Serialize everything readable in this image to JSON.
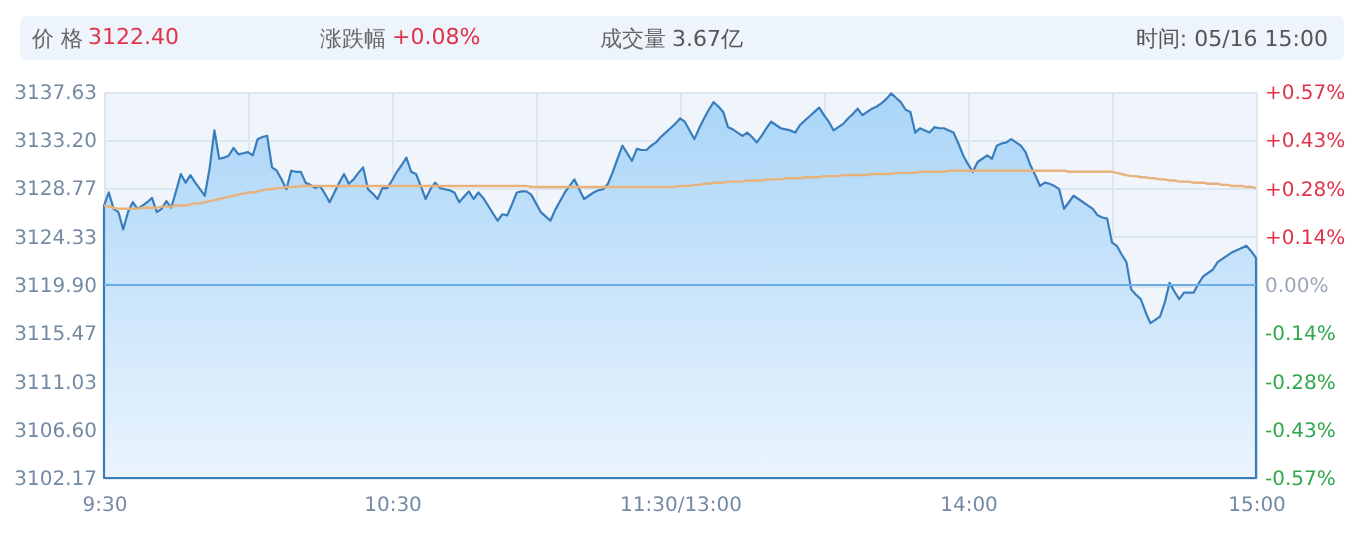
{
  "chart_data": {
    "type": "area",
    "annotations": [
      "价 格",
      "3122.40",
      "涨跌幅",
      "+0.08%",
      "成交量",
      "3.67亿",
      "时间: 05/16 15:00"
    ],
    "categories": [
      "9:30",
      null,
      null,
      null,
      null,
      null,
      null,
      null,
      null,
      null,
      null,
      null,
      null,
      null,
      null,
      null,
      null,
      null,
      null,
      null,
      null,
      null,
      null,
      null,
      null,
      null,
      null,
      null,
      null,
      null,
      null,
      null,
      null,
      null,
      null,
      null,
      null,
      null,
      null,
      null,
      null,
      null,
      null,
      null,
      null,
      null,
      null,
      null,
      null,
      null,
      null,
      null,
      null,
      null,
      null,
      null,
      null,
      null,
      null,
      null,
      "10:30",
      null,
      null,
      null,
      null,
      null,
      null,
      null,
      null,
      null,
      null,
      null,
      null,
      null,
      null,
      null,
      null,
      null,
      null,
      null,
      null,
      null,
      null,
      null,
      null,
      null,
      null,
      null,
      null,
      null,
      null,
      null,
      null,
      null,
      null,
      null,
      null,
      null,
      null,
      null,
      null,
      null,
      null,
      null,
      null,
      null,
      null,
      null,
      null,
      null,
      null,
      null,
      null,
      null,
      null,
      null,
      null,
      null,
      null,
      null,
      "11:30/13:00",
      null,
      null,
      null,
      null,
      null,
      null,
      null,
      null,
      null,
      null,
      null,
      null,
      null,
      null,
      null,
      null,
      null,
      null,
      null,
      null,
      null,
      null,
      null,
      null,
      null,
      null,
      null,
      null,
      null,
      null,
      null,
      null,
      null,
      null,
      null,
      null,
      null,
      null,
      null,
      null,
      null,
      null,
      null,
      null,
      null,
      null,
      null,
      null,
      null,
      null,
      null,
      null,
      null,
      null,
      null,
      null,
      null,
      null,
      null,
      "14:00",
      null,
      null,
      null,
      null,
      null,
      null,
      null,
      null,
      null,
      null,
      null,
      null,
      null,
      null,
      null,
      null,
      null,
      null,
      null,
      null,
      null,
      null,
      null,
      null,
      null,
      null,
      null,
      null,
      null,
      null,
      null,
      null,
      null,
      null,
      null,
      null,
      null,
      null,
      null,
      null,
      null,
      null,
      null,
      null,
      null,
      null,
      null,
      null,
      null,
      null,
      null,
      null,
      null,
      null,
      null,
      null,
      null,
      null,
      null,
      "15:00"
    ],
    "ylim": [
      3102.17,
      3137.63
    ],
    "yticks": [
      3102.17,
      {
        "value": 3106.6,
        "label": "3106.60"
      },
      3111.03,
      3115.47,
      {
        "value": 3119.9,
        "label": "3119.90"
      },
      3124.33,
      3128.77,
      {
        "value": 3133.2,
        "label": "3133.20"
      },
      3137.63
    ],
    "y2lim": [
      -0.57,
      0.57
    ],
    "y2ticks": [
      {
        "value": -0.57,
        "label": "-0.57%"
      },
      {
        "value": -0.4275,
        "label": "-0.43%"
      },
      {
        "value": -0.285,
        "label": "-0.28%"
      },
      {
        "value": -0.1425,
        "label": "-0.14%"
      },
      {
        "value": 0,
        "label": "0.00%"
      },
      {
        "value": 0.1425,
        "label": "+0.14%"
      },
      {
        "value": 0.285,
        "label": "+0.28%"
      },
      {
        "value": 0.4275,
        "label": "+0.43%"
      },
      {
        "value": 0.57,
        "label": "+0.57%"
      }
    ],
    "grid": true,
    "ref_lines": [
      {
        "axis": "y2",
        "value": 0,
        "color": "#6aaee6"
      }
    ],
    "series": [
      {
        "color": "#3a7dbd",
        "values": [
          3127.2,
          3128.4,
          3126.9,
          3126.6,
          3125.0,
          3126.6,
          3127.5,
          3126.9,
          3127.2,
          3127.5,
          3127.9,
          3126.6,
          3126.9,
          3127.6,
          3127.0,
          3128.5,
          3130.1,
          3129.3,
          3130.0,
          3129.3,
          3128.7,
          3128.1,
          3130.6,
          3134.1,
          3131.5,
          3131.6,
          3131.8,
          3132.5,
          3131.9,
          3132.0,
          3132.1,
          3131.8,
          3133.3,
          3133.5,
          3133.6,
          3130.7,
          3130.4,
          3129.6,
          3128.7,
          3130.4,
          3130.3,
          3130.3,
          3129.3,
          3129.1,
          3128.8,
          3129.0,
          3128.3,
          3127.5,
          3128.4,
          3129.3,
          3130.1,
          3129.2,
          3129.6,
          3130.2,
          3130.7,
          3128.7,
          3128.3,
          3127.8,
          3128.8,
          3128.8,
          3129.5,
          3130.3,
          3130.9,
          3131.6,
          3130.3,
          3130.1,
          3129.0,
          3127.8,
          3128.7,
          3129.3,
          3128.8,
          3128.7,
          3128.6,
          3128.4,
          3127.5,
          3128.0,
          3128.5,
          3127.8,
          3128.4,
          3127.9,
          3127.2,
          3126.5,
          3125.8,
          3126.4,
          3126.3,
          3127.3,
          3128.4,
          3128.5,
          3128.5,
          3128.2,
          3127.4,
          3126.6,
          3126.2,
          3125.8,
          3126.8,
          3127.6,
          3128.4,
          3129.0,
          3129.6,
          3128.7,
          3127.8,
          3128.1,
          3128.4,
          3128.6,
          3128.7,
          3129.2,
          3130.3,
          3131.5,
          3132.7,
          3132.0,
          3131.3,
          3132.4,
          3132.3,
          3132.3,
          3132.7,
          3133.0,
          3133.5,
          3133.9,
          3134.3,
          3134.7,
          3135.2,
          3134.9,
          3134.1,
          3133.3,
          3134.3,
          3135.2,
          3136.0,
          3136.7,
          3136.3,
          3135.8,
          3134.4,
          3134.2,
          3133.9,
          3133.6,
          3133.9,
          3133.5,
          3133.0,
          3133.6,
          3134.3,
          3134.9,
          3134.6,
          3134.3,
          3134.2,
          3134.1,
          3133.9,
          3134.6,
          3135.0,
          3135.4,
          3135.8,
          3136.2,
          3135.5,
          3134.9,
          3134.1,
          3134.4,
          3134.7,
          3135.2,
          3135.6,
          3136.1,
          3135.5,
          3135.8,
          3136.1,
          3136.3,
          3136.6,
          3137.0,
          3137.5,
          3137.1,
          3136.7,
          3136.0,
          3135.8,
          3133.9,
          3134.3,
          3134.1,
          3133.9,
          3134.4,
          3134.3,
          3134.3,
          3134.1,
          3133.9,
          3132.9,
          3131.8,
          3131.0,
          3130.3,
          3131.2,
          3131.5,
          3131.8,
          3131.5,
          3132.7,
          3132.9,
          3133.0,
          3133.3,
          3133.0,
          3132.7,
          3132.1,
          3130.9,
          3130.0,
          3129.0,
          3129.3,
          3129.2,
          3129.0,
          3128.7,
          3126.9,
          3127.5,
          3128.1,
          3127.8,
          3127.5,
          3127.2,
          3126.9,
          3126.3,
          3126.1,
          3126.0,
          3123.8,
          3123.5,
          3122.7,
          3122.0,
          3119.5,
          3119.0,
          3118.6,
          3117.4,
          3116.4,
          3116.7,
          3117.0,
          3118.3,
          3120.1,
          3119.3,
          3118.6,
          3119.2,
          3119.2,
          3119.2,
          3120.0,
          3120.7,
          3121.0,
          3121.3,
          3122.0,
          3122.3,
          3122.6,
          3122.9,
          3123.1,
          3123.3,
          3123.5,
          3123.0,
          3122.4
        ]
      },
      {
        "type": "line",
        "color": "#e8b27c",
        "values": [
          3127.2,
          3127.1,
          3127.0,
          3126.9,
          3126.9,
          3126.9,
          3126.9,
          3126.9,
          3127.0,
          3127.0,
          3127.0,
          3127.0,
          3127.1,
          3127.1,
          3127.1,
          3127.2,
          3127.2,
          3127.2,
          3127.3,
          3127.4,
          3127.4,
          3127.5,
          3127.6,
          3127.7,
          3127.8,
          3127.9,
          3128.0,
          3128.1,
          3128.2,
          3128.3,
          3128.4,
          3128.4,
          3128.5,
          3128.6,
          3128.7,
          3128.7,
          3128.8,
          3128.8,
          3128.9,
          3128.9,
          3128.9,
          3129.0,
          3129.0,
          3129.0,
          3129.0,
          3129.0,
          3129.0,
          3129.0,
          3129.0,
          3129.0,
          3129.0,
          3129.0,
          3129.0,
          3129.0,
          3129.0,
          3129.0,
          3129.0,
          3129.0,
          3129.0,
          3129.0,
          3129.0,
          3129.0,
          3129.0,
          3129.0,
          3129.0,
          3129.0,
          3129.0,
          3129.0,
          3129.0,
          3129.0,
          3129.0,
          3129.0,
          3129.0,
          3129.0,
          3129.0,
          3129.0,
          3129.0,
          3129.0,
          3129.0,
          3129.0,
          3129.0,
          3129.0,
          3129.0,
          3129.0,
          3129.0,
          3129.0,
          3129.0,
          3129.0,
          3129.0,
          3128.9,
          3128.9,
          3128.9,
          3128.9,
          3128.9,
          3128.9,
          3128.9,
          3128.9,
          3128.9,
          3128.9,
          3128.9,
          3128.9,
          3128.9,
          3128.9,
          3128.9,
          3128.9,
          3128.9,
          3128.9,
          3128.9,
          3128.9,
          3128.9,
          3128.9,
          3128.9,
          3128.9,
          3128.9,
          3128.9,
          3128.9,
          3128.9,
          3128.9,
          3128.9,
          3128.9,
          3129.0,
          3129.0,
          3129.0,
          3129.1,
          3129.1,
          3129.2,
          3129.2,
          3129.3,
          3129.3,
          3129.3,
          3129.4,
          3129.4,
          3129.4,
          3129.4,
          3129.5,
          3129.5,
          3129.5,
          3129.5,
          3129.6,
          3129.6,
          3129.6,
          3129.6,
          3129.7,
          3129.7,
          3129.7,
          3129.7,
          3129.8,
          3129.8,
          3129.8,
          3129.8,
          3129.9,
          3129.9,
          3129.9,
          3129.9,
          3130.0,
          3130.0,
          3130.0,
          3130.0,
          3130.0,
          3130.0,
          3130.1,
          3130.1,
          3130.1,
          3130.1,
          3130.1,
          3130.2,
          3130.2,
          3130.2,
          3130.2,
          3130.2,
          3130.3,
          3130.3,
          3130.3,
          3130.3,
          3130.3,
          3130.3,
          3130.4,
          3130.4,
          3130.4,
          3130.4,
          3130.4,
          3130.4,
          3130.4,
          3130.4,
          3130.4,
          3130.4,
          3130.4,
          3130.4,
          3130.4,
          3130.4,
          3130.4,
          3130.4,
          3130.4,
          3130.4,
          3130.4,
          3130.4,
          3130.4,
          3130.4,
          3130.4,
          3130.4,
          3130.4,
          3130.3,
          3130.3,
          3130.3,
          3130.3,
          3130.3,
          3130.3,
          3130.3,
          3130.3,
          3130.3,
          3130.3,
          3130.2,
          3130.1,
          3130.0,
          3129.9,
          3129.9,
          3129.8,
          3129.8,
          3129.7,
          3129.7,
          3129.6,
          3129.6,
          3129.5,
          3129.5,
          3129.4,
          3129.4,
          3129.4,
          3129.3,
          3129.3,
          3129.3,
          3129.2,
          3129.2,
          3129.2,
          3129.1,
          3129.1,
          3129.0,
          3129.0,
          3129.0,
          3128.9,
          3128.9,
          3128.8
        ]
      }
    ]
  }
}
